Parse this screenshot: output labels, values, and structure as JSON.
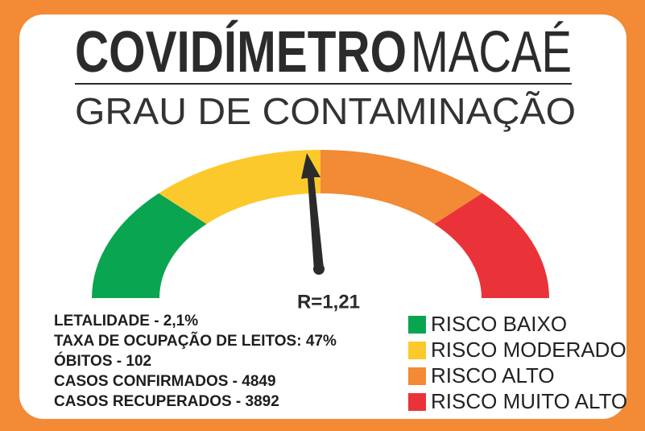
{
  "header": {
    "title": "COVIDÍMETRO",
    "city": "MACAÉ",
    "subtitle": "GRAU DE CONTAMINAÇÃO"
  },
  "gauge": {
    "reading": "R=1,21"
  },
  "stats": [
    "LETALIDADE - 2,1%",
    "TAXA DE OCUPAÇÃO DE LEITOS: 47%",
    "ÓBITOS - 102",
    "CASOS CONFIRMADOS - 4849",
    "CASOS RECUPERADOS - 3892"
  ],
  "legend": [
    {
      "label": "RISCO BAIXO",
      "color": "#0aa550"
    },
    {
      "label": "RISCO MODERADO",
      "color": "#fcc92c"
    },
    {
      "label": "RISCO ALTO",
      "color": "#f28a36"
    },
    {
      "label": "RISCO MUITO ALTO",
      "color": "#ea3339"
    }
  ]
}
